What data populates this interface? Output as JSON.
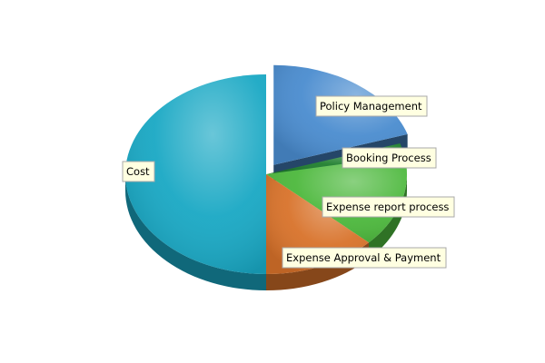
{
  "chart_data": {
    "type": "pie",
    "style": "3d-exploded",
    "slices": [
      {
        "label": "Policy Management",
        "value": 20,
        "color": "#4a8ccf",
        "exploded": true
      },
      {
        "label": "Booking Process",
        "value": 2,
        "color": "#1f7f2e"
      },
      {
        "label": "Expense report process",
        "value": 15,
        "color": "#4cb83c"
      },
      {
        "label": "Expense Approval & Payment",
        "value": 13,
        "color": "#d8722a"
      },
      {
        "label": "Cost",
        "value": 50,
        "color": "#19a8c4"
      }
    ],
    "legend": "none",
    "title": ""
  }
}
